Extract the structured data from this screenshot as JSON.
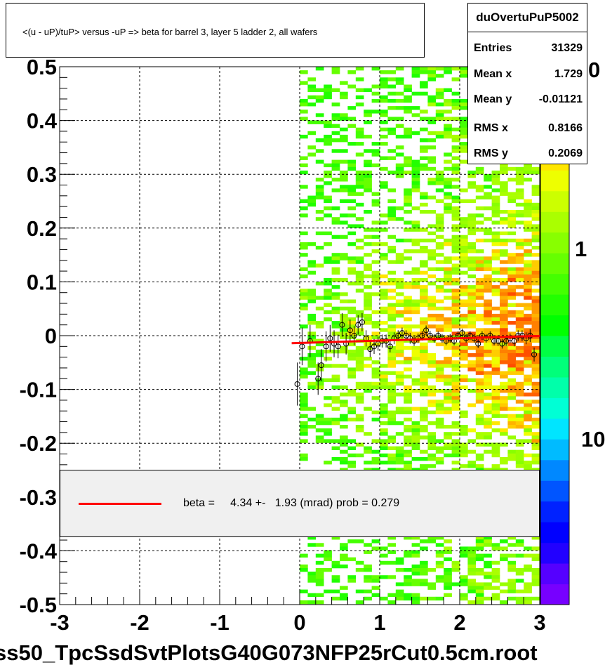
{
  "title": "<(u - uP)/tuP> versus  -uP => beta for barrel 3, layer 5 ladder 2, all wafers",
  "stats": {
    "name": "duOvertuPuP5002",
    "rows": [
      {
        "label": "Entries",
        "value": "31329"
      },
      {
        "label": "Mean x",
        "value": "1.729"
      },
      {
        "label": "Mean y",
        "value": "-0.01121"
      },
      {
        "label": "RMS x",
        "value": "0.8166"
      },
      {
        "label": "RMS y",
        "value": "0.2069"
      }
    ]
  },
  "legend": {
    "text": "beta =     4.34 +-   1.93 (mrad) prob = 0.279",
    "line_color": "#ff0000"
  },
  "footer": "ss50_TpcSsdSvtPlotsG40G073NFP25rCut0.5cm.root",
  "colorbar": {
    "labels": [
      "0",
      "1",
      "10"
    ],
    "palette": [
      "#7700ff",
      "#5500ff",
      "#2200ff",
      "#0000ff",
      "#0022ff",
      "#0055ff",
      "#0088ff",
      "#00bbff",
      "#00e5ff",
      "#00ffd5",
      "#00ffaa",
      "#00ff7a",
      "#00ff44",
      "#00ff00",
      "#22ff00",
      "#44ff00",
      "#66ff00",
      "#88ff00",
      "#aaff00",
      "#ccff00",
      "#eeff00",
      "#ffe600",
      "#ffb300",
      "#ff8000",
      "#ff4d00",
      "#ff1a00"
    ]
  },
  "chart_data": {
    "type": "heatmap",
    "x_ticks": [
      "-3",
      "-2",
      "-1",
      "0",
      "1",
      "2",
      "3"
    ],
    "y_ticks": [
      "0.5",
      "0.4",
      "0.3",
      "0.2",
      "0.1",
      "0",
      "-0.1",
      "-0.2",
      "-0.3",
      "-0.4",
      "-0.5"
    ],
    "xlim": [
      -3,
      3
    ],
    "ylim": [
      -0.5,
      0.5
    ],
    "grid": true,
    "heatmap_x_range": [
      0.0,
      3.0
    ],
    "profile_points": {
      "x": [
        -0.03,
        0.03,
        0.13,
        0.23,
        0.27,
        0.33,
        0.38,
        0.43,
        0.48,
        0.53,
        0.58,
        0.63,
        0.68,
        0.73,
        0.78,
        0.83,
        0.88,
        0.93,
        0.98,
        1.03,
        1.08,
        1.13,
        1.18,
        1.23,
        1.28,
        1.33,
        1.38,
        1.43,
        1.48,
        1.53,
        1.58,
        1.63,
        1.68,
        1.73,
        1.78,
        1.83,
        1.88,
        1.93,
        1.98,
        2.03,
        2.08,
        2.13,
        2.18,
        2.23,
        2.28,
        2.33,
        2.38,
        2.43,
        2.48,
        2.53,
        2.58,
        2.63,
        2.68,
        2.73,
        2.78,
        2.83,
        2.88,
        2.93
      ],
      "y": [
        -0.09,
        -0.02,
        -0.01,
        -0.08,
        -0.055,
        -0.02,
        -0.005,
        -0.015,
        -0.02,
        0.02,
        -0.015,
        0.01,
        0.0,
        0.02,
        0.025,
        -0.005,
        -0.025,
        -0.02,
        -0.015,
        -0.01,
        -0.01,
        -0.02,
        -0.005,
        0.0,
        0.005,
        0.0,
        -0.005,
        -0.01,
        -0.005,
        0.0,
        0.01,
        0.0,
        -0.005,
        0.0,
        -0.005,
        -0.01,
        -0.005,
        -0.01,
        0.0,
        0.005,
        -0.005,
        0.0,
        -0.005,
        -0.015,
        0.0,
        -0.005,
        0.0,
        -0.01,
        -0.01,
        -0.015,
        -0.01,
        -0.005,
        -0.01,
        0.0,
        0.0,
        -0.005,
        0.0,
        -0.035
      ],
      "err": [
        0.04,
        0.035,
        0.03,
        0.03,
        0.03,
        0.028,
        0.025,
        0.025,
        0.022,
        0.022,
        0.02,
        0.02,
        0.018,
        0.018,
        0.017,
        0.015,
        0.015,
        0.014,
        0.013,
        0.012,
        0.012,
        0.011,
        0.011,
        0.01,
        0.01,
        0.01,
        0.01,
        0.009,
        0.009,
        0.009,
        0.009,
        0.009,
        0.008,
        0.008,
        0.008,
        0.008,
        0.008,
        0.008,
        0.008,
        0.008,
        0.008,
        0.008,
        0.008,
        0.008,
        0.008,
        0.008,
        0.008,
        0.008,
        0.009,
        0.009,
        0.009,
        0.009,
        0.01,
        0.01,
        0.01,
        0.011,
        0.012,
        0.013
      ]
    },
    "fit_line": {
      "x": [
        -0.1,
        3.0
      ],
      "y": [
        -0.014,
        -0.0005
      ],
      "color": "#ff0000"
    }
  }
}
